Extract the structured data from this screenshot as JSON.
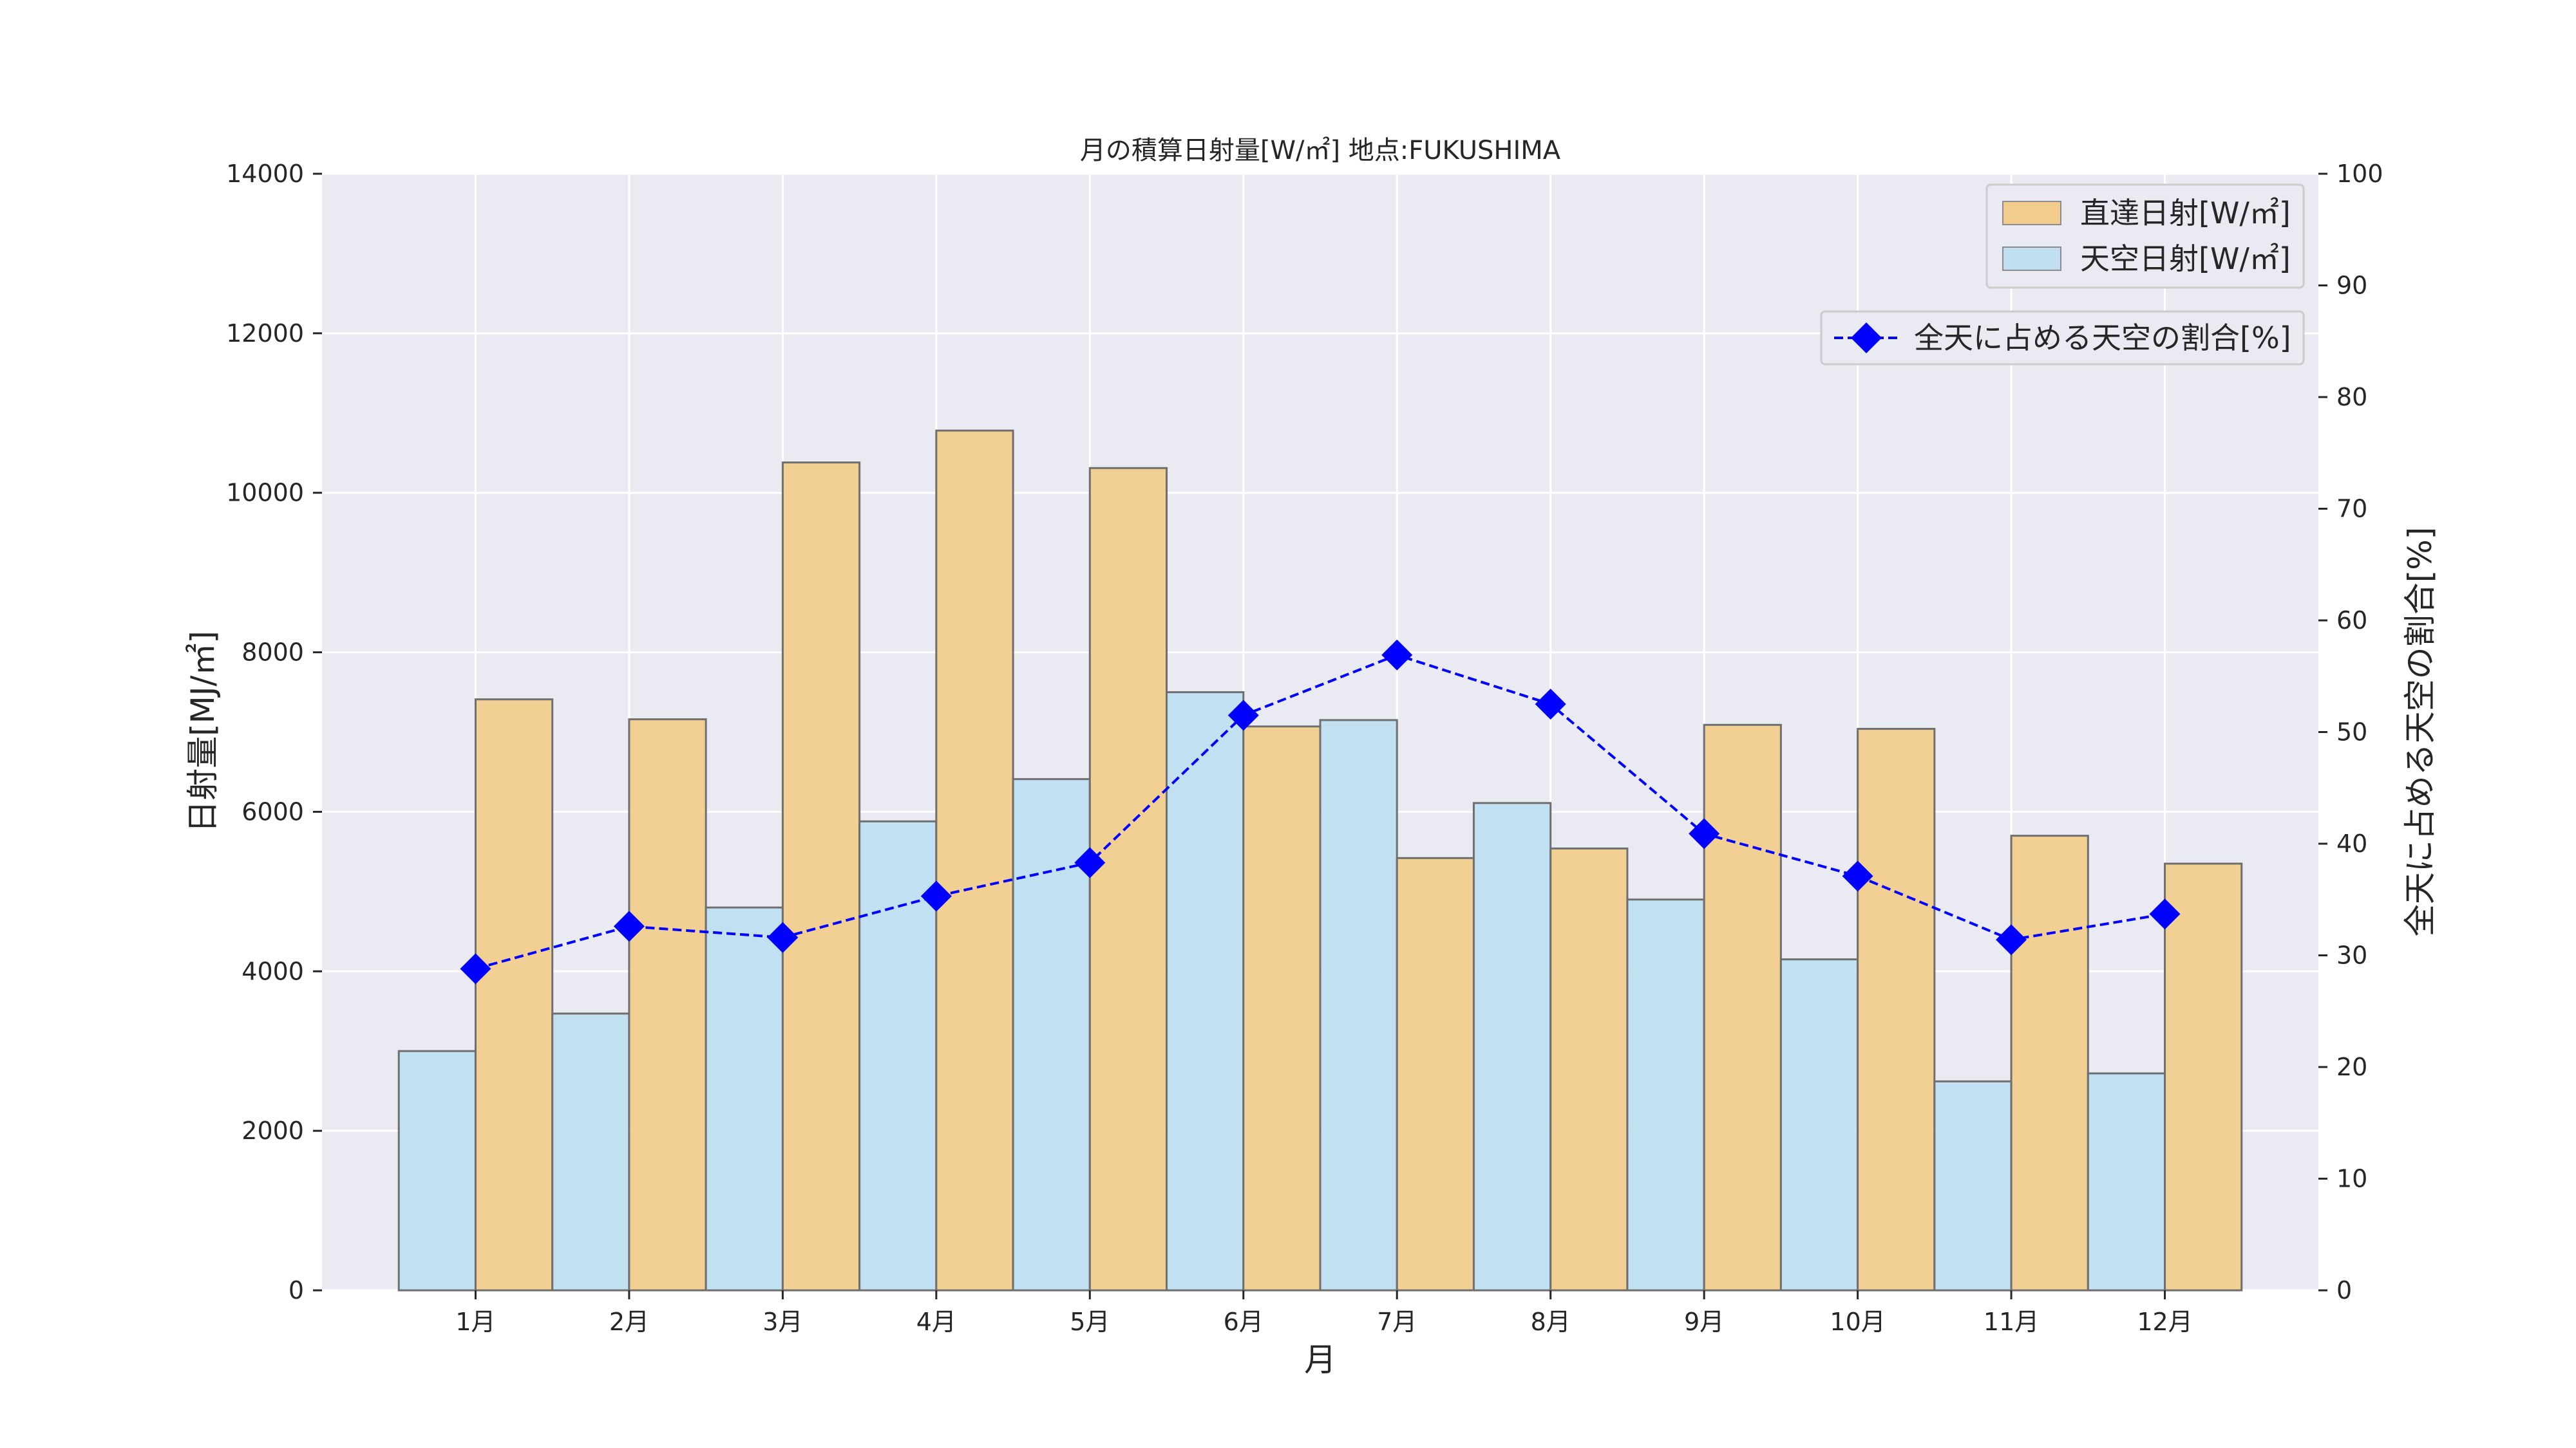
{
  "chart_data": {
    "type": "bar",
    "title": "月の積算日射量[W/㎡] 地点:FUKUSHIMA",
    "xlabel": "月",
    "ylabel": "日射量[MJ/㎡]",
    "y2label": "全天に占める天空の割合[%]",
    "categories": [
      "1月",
      "2月",
      "3月",
      "4月",
      "5月",
      "6月",
      "7月",
      "8月",
      "9月",
      "10月",
      "11月",
      "12月"
    ],
    "ylim": [
      0,
      14000
    ],
    "y2lim": [
      0,
      100
    ],
    "yticks": [
      "0",
      "2000",
      "4000",
      "6000",
      "8000",
      "10000",
      "12000",
      "14000"
    ],
    "y2ticks": [
      "0",
      "10",
      "20",
      "30",
      "40",
      "50",
      "60",
      "70",
      "80",
      "90",
      "100"
    ],
    "grid": true,
    "series": [
      {
        "name": "天空日射[W/㎡]",
        "type": "bar",
        "axis": "left",
        "color": "#bfdff0",
        "values": [
          3000,
          3470,
          4800,
          5880,
          6410,
          7500,
          7150,
          6110,
          4900,
          4150,
          2620,
          2720
        ]
      },
      {
        "name": "直達日射[W/㎡]",
        "type": "bar",
        "axis": "left",
        "color": "#f2cd8d",
        "values": [
          7410,
          7160,
          10380,
          10780,
          10310,
          7070,
          5420,
          5540,
          7090,
          7040,
          5700,
          5350
        ]
      },
      {
        "name": "全天に占める天空の割合[%]",
        "type": "line",
        "axis": "right",
        "color": "#0000ff",
        "style": "dashed",
        "marker": "diamond",
        "values": [
          28.8,
          32.6,
          31.6,
          35.3,
          38.3,
          51.5,
          56.9,
          52.5,
          40.9,
          37.1,
          31.4,
          33.7
        ]
      }
    ],
    "legend": [
      {
        "position": "top-right",
        "items": [
          "直達日射[W/㎡]",
          "天空日射[W/㎡]"
        ]
      },
      {
        "position": "upper-right",
        "items": [
          "全天に占める天空の割合[%]"
        ]
      }
    ],
    "background_color": "#eaeaf2",
    "grid_color": "#ffffff"
  }
}
